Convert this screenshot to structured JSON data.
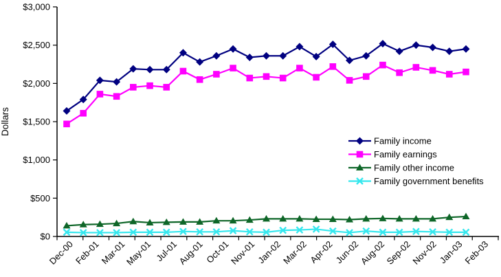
{
  "chart_data": {
    "type": "line",
    "title": "",
    "ylabel": "Dollars",
    "ylim": [
      0,
      3000
    ],
    "ytick_interval": 500,
    "ytick_labels": [
      "$0",
      "$500",
      "$1,000",
      "$1,500",
      "$2,000",
      "$2,500",
      "$3,000"
    ],
    "xtick_labels": [
      "Dec-00",
      "Feb-01",
      "Mar-01",
      "May-01",
      "Jul-01",
      "Aug-01",
      "Oct-01",
      "Nov-01",
      "Jan-02",
      "Mar-02",
      "Apr-02",
      "Jun-02",
      "Aug-02",
      "Sep-02",
      "Nov-02",
      "Jan-03",
      "Feb-03"
    ],
    "grid": false,
    "legend_position": "center-right",
    "axis_color": "#000000",
    "series": [
      {
        "name": "Family income",
        "color": "#000080",
        "marker": "diamond",
        "values": [
          1640,
          1790,
          2040,
          2020,
          2190,
          2180,
          2180,
          2400,
          2280,
          2360,
          2450,
          2340,
          2360,
          2360,
          2480,
          2350,
          2510,
          2300,
          2360,
          2520,
          2420,
          2500,
          2470,
          2420,
          2450
        ]
      },
      {
        "name": "Family earnings",
        "color": "#FF00FF",
        "marker": "square",
        "values": [
          1470,
          1610,
          1860,
          1830,
          1950,
          1970,
          1950,
          2160,
          2050,
          2120,
          2200,
          2070,
          2090,
          2070,
          2200,
          2080,
          2220,
          2040,
          2090,
          2240,
          2140,
          2210,
          2170,
          2120,
          2150
        ]
      },
      {
        "name": "Family other income",
        "color": "#0E6628",
        "marker": "triangle-up",
        "values": [
          140,
          155,
          160,
          170,
          195,
          180,
          185,
          190,
          190,
          205,
          205,
          215,
          230,
          230,
          230,
          225,
          225,
          220,
          230,
          235,
          230,
          230,
          230,
          250,
          260
        ]
      },
      {
        "name": "Family government benefits",
        "color": "#35E7EE",
        "marker": "x",
        "values": [
          55,
          50,
          50,
          50,
          55,
          55,
          55,
          65,
          60,
          60,
          75,
          60,
          55,
          80,
          85,
          95,
          70,
          50,
          70,
          55,
          55,
          65,
          60,
          55,
          55
        ]
      }
    ]
  }
}
